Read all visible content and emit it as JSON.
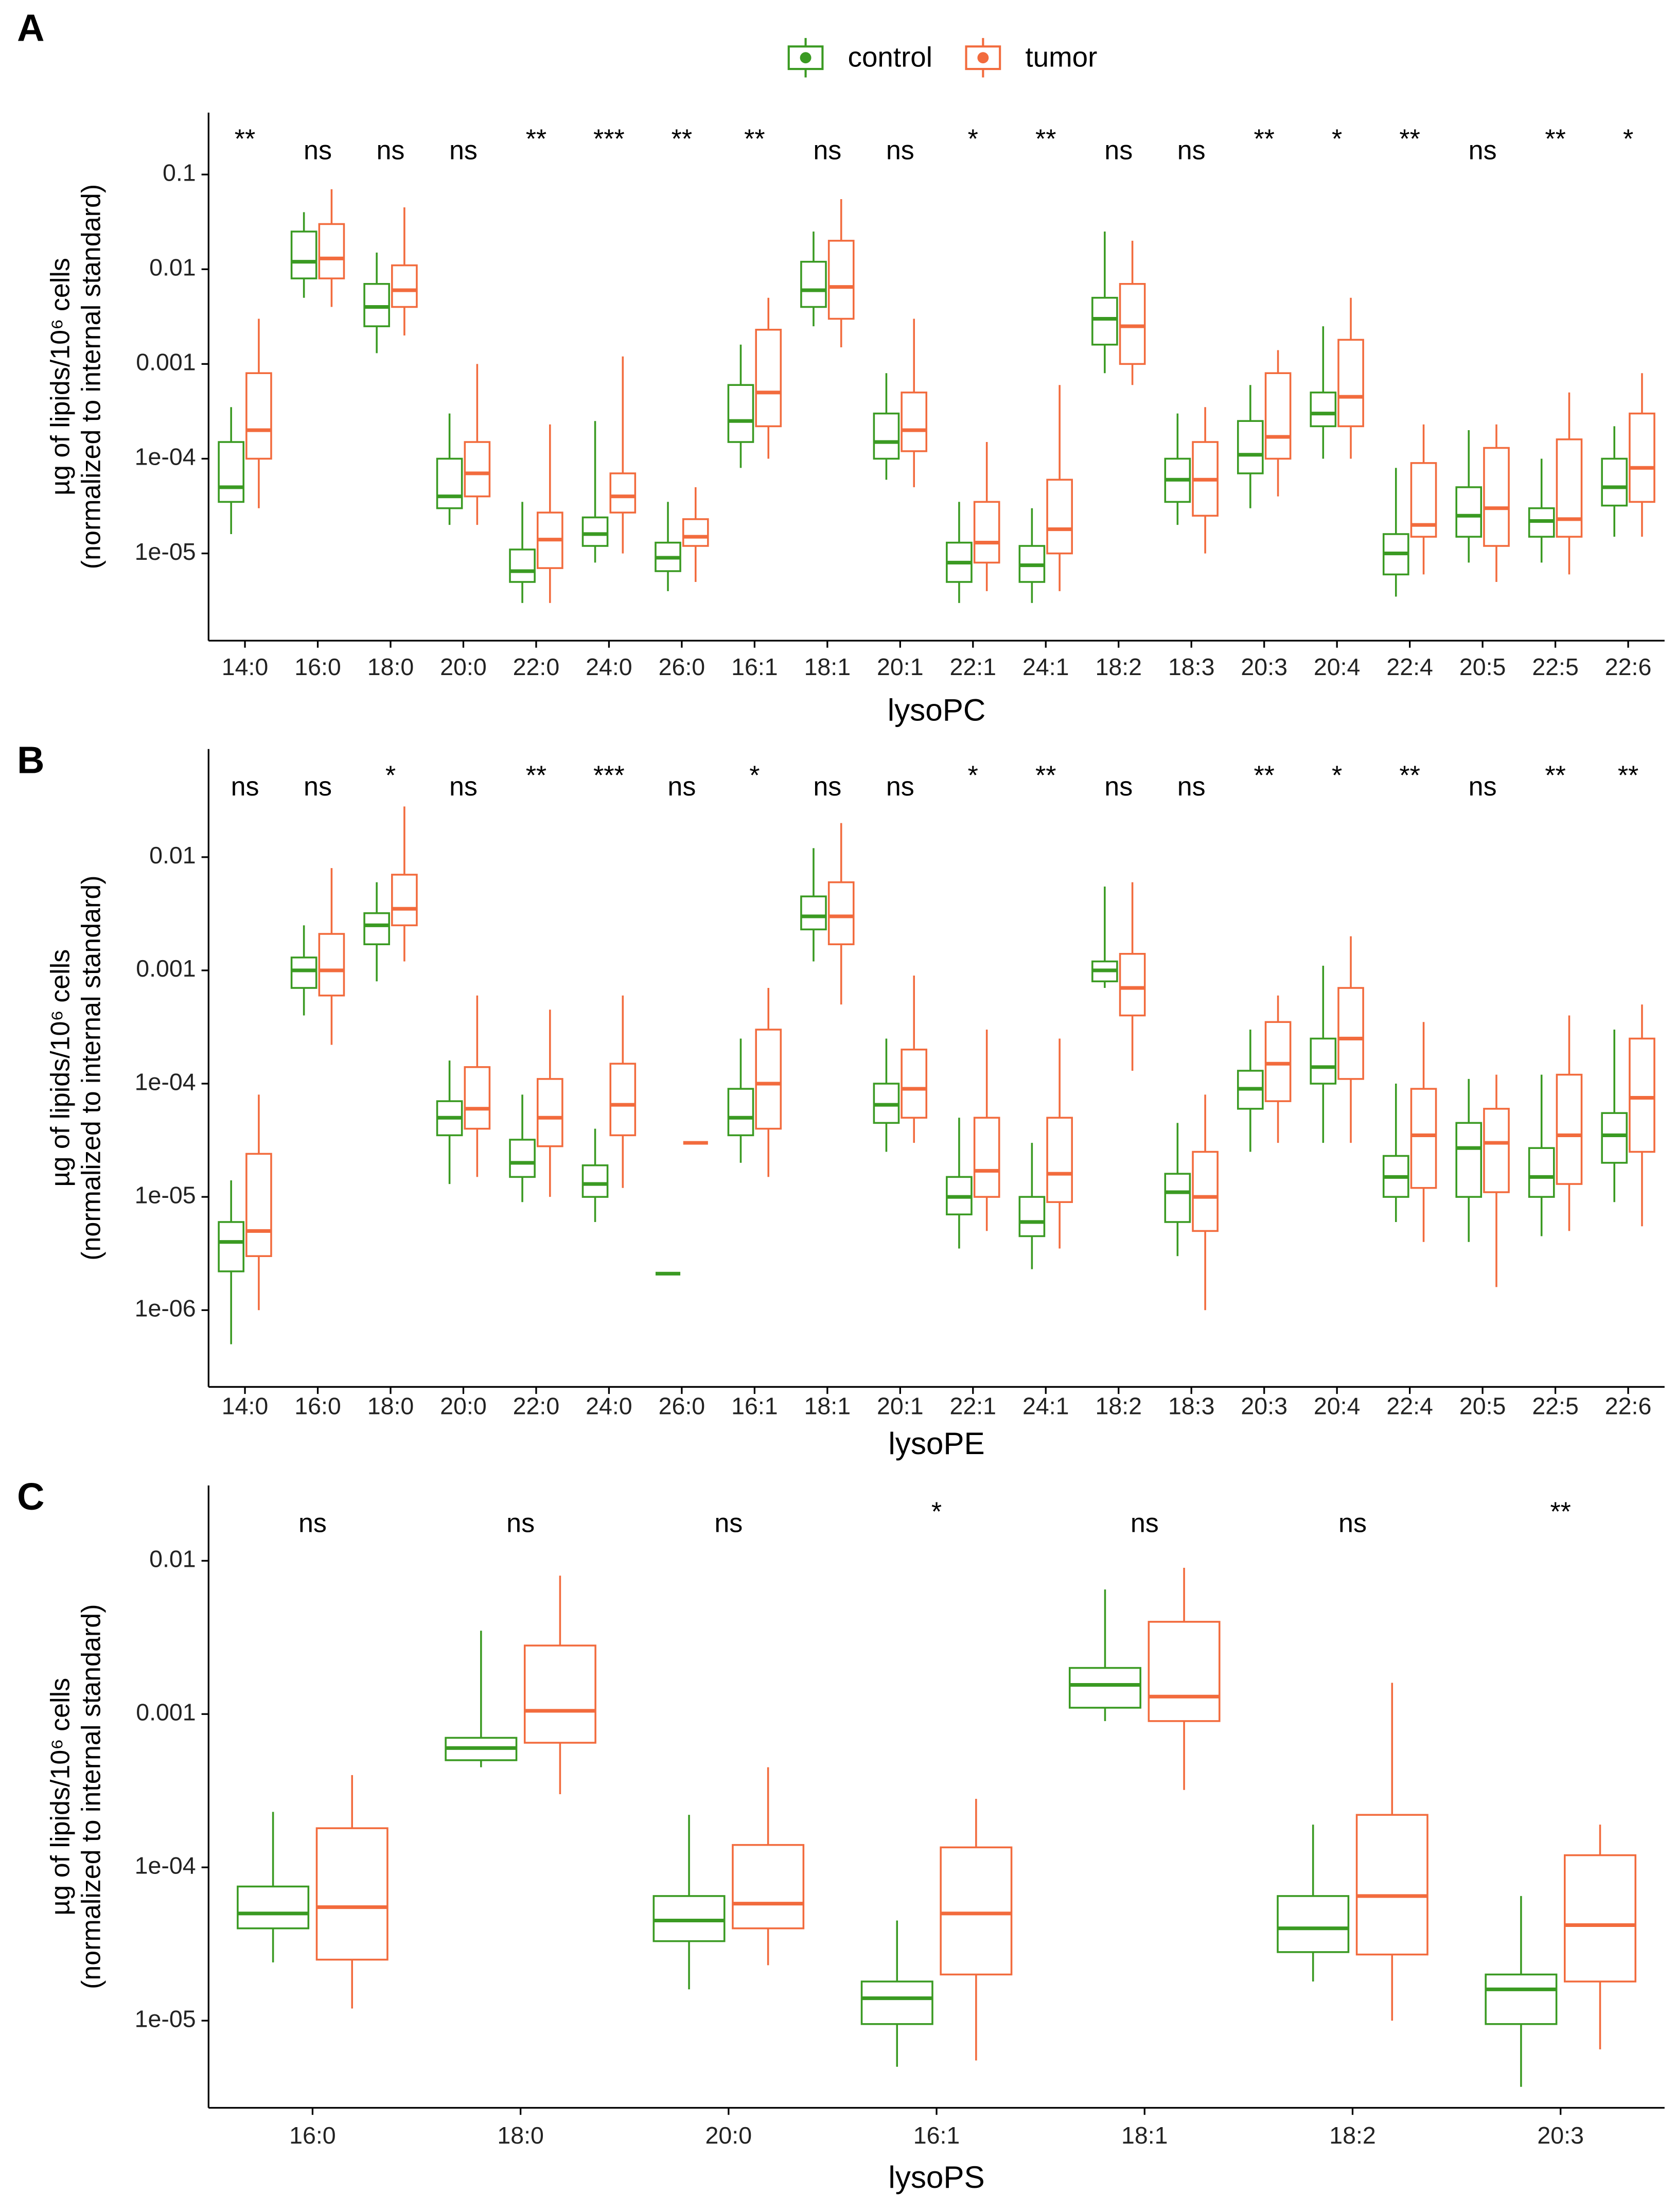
{
  "chart_data": [
    {
      "type": "box",
      "panel": "A",
      "xlabel": "lysoPC",
      "ylabel": [
        "µg of lipids/10⁶ cells",
        "(normalized to internal standard)"
      ],
      "log_scale": true,
      "ylim": [
        1.2e-06,
        0.45
      ],
      "yticks": [
        {
          "value": 1e-05,
          "label": "1e-05"
        },
        {
          "value": 0.0001,
          "label": "1e-04"
        },
        0.001,
        0.01,
        0.1
      ],
      "categories": [
        "14:0",
        "16:0",
        "18:0",
        "20:0",
        "22:0",
        "24:0",
        "26:0",
        "16:1",
        "18:1",
        "20:1",
        "22:1",
        "24:1",
        "18:2",
        "18:3",
        "20:3",
        "20:4",
        "22:4",
        "20:5",
        "22:5",
        "22:6"
      ],
      "annotations": [
        "**",
        "ns",
        "ns",
        "ns",
        "**",
        "***",
        "**",
        "**",
        "ns",
        "ns",
        "*",
        "**",
        "ns",
        "ns",
        "**",
        "*",
        "**",
        "ns",
        "**",
        "*"
      ],
      "series": [
        {
          "name": "control",
          "color": "#3a9a22",
          "values": [
            [
              1.6e-05,
              3.5e-05,
              5e-05,
              0.00015,
              0.00035
            ],
            [
              0.005,
              0.008,
              0.012,
              0.025,
              0.04
            ],
            [
              0.0013,
              0.0025,
              0.004,
              0.007,
              0.015
            ],
            [
              2e-05,
              3e-05,
              4e-05,
              0.0001,
              0.0003
            ],
            [
              3e-06,
              5e-06,
              6.5e-06,
              1.1e-05,
              3.5e-05
            ],
            [
              8e-06,
              1.2e-05,
              1.6e-05,
              2.4e-05,
              0.00025
            ],
            [
              4e-06,
              6.5e-06,
              9e-06,
              1.3e-05,
              3.5e-05
            ],
            [
              8e-05,
              0.00015,
              0.00025,
              0.0006,
              0.0016
            ],
            [
              0.0025,
              0.004,
              0.006,
              0.012,
              0.025
            ],
            [
              6e-05,
              0.0001,
              0.00015,
              0.0003,
              0.0008
            ],
            [
              3e-06,
              5e-06,
              8e-06,
              1.3e-05,
              3.5e-05
            ],
            [
              3e-06,
              5e-06,
              7.5e-06,
              1.2e-05,
              3e-05
            ],
            [
              0.0008,
              0.0016,
              0.003,
              0.005,
              0.025
            ],
            [
              2e-05,
              3.5e-05,
              6e-05,
              0.0001,
              0.0003
            ],
            [
              3e-05,
              7e-05,
              0.00011,
              0.00025,
              0.0006
            ],
            [
              0.0001,
              0.00022,
              0.0003,
              0.0005,
              0.0025
            ],
            [
              3.5e-06,
              6e-06,
              1e-05,
              1.6e-05,
              8e-05
            ],
            [
              8e-06,
              1.5e-05,
              2.5e-05,
              5e-05,
              0.0002
            ],
            [
              8e-06,
              1.5e-05,
              2.2e-05,
              3e-05,
              0.0001
            ],
            [
              1.5e-05,
              3.2e-05,
              5e-05,
              0.0001,
              0.00022
            ]
          ]
        },
        {
          "name": "tumor",
          "color": "#f26b3d",
          "values": [
            [
              3e-05,
              0.0001,
              0.0002,
              0.0008,
              0.003
            ],
            [
              0.004,
              0.008,
              0.013,
              0.03,
              0.07
            ],
            [
              0.002,
              0.004,
              0.006,
              0.011,
              0.045
            ],
            [
              2e-05,
              4e-05,
              7e-05,
              0.00015,
              0.001
            ],
            [
              3e-06,
              7e-06,
              1.4e-05,
              2.7e-05,
              0.00023
            ],
            [
              1e-05,
              2.7e-05,
              4e-05,
              7e-05,
              0.0012
            ],
            [
              5e-06,
              1.2e-05,
              1.5e-05,
              2.3e-05,
              5e-05
            ],
            [
              0.0001,
              0.00022,
              0.0005,
              0.0023,
              0.005
            ],
            [
              0.0015,
              0.003,
              0.0065,
              0.02,
              0.055
            ],
            [
              5e-05,
              0.00012,
              0.0002,
              0.0005,
              0.003
            ],
            [
              4e-06,
              8e-06,
              1.3e-05,
              3.5e-05,
              0.00015
            ],
            [
              4e-06,
              1e-05,
              1.8e-05,
              6e-05,
              0.0006
            ],
            [
              0.0006,
              0.001,
              0.0025,
              0.007,
              0.02
            ],
            [
              1e-05,
              2.5e-05,
              6e-05,
              0.00015,
              0.00035
            ],
            [
              4e-05,
              0.0001,
              0.00017,
              0.0008,
              0.0014
            ],
            [
              0.0001,
              0.00022,
              0.00045,
              0.0018,
              0.005
            ],
            [
              6e-06,
              1.5e-05,
              2e-05,
              9e-05,
              0.00023
            ],
            [
              5e-06,
              1.2e-05,
              3e-05,
              0.00013,
              0.00023
            ],
            [
              6e-06,
              1.5e-05,
              2.3e-05,
              0.00016,
              0.0005
            ],
            [
              1.5e-05,
              3.5e-05,
              8e-05,
              0.0003,
              0.0008
            ]
          ]
        }
      ]
    },
    {
      "type": "box",
      "panel": "B",
      "xlabel": "lysoPE",
      "ylabel": [
        "µg of lipids/10⁶ cells",
        "(normalized to internal standard)"
      ],
      "log_scale": true,
      "ylim": [
        2.1e-07,
        0.09
      ],
      "yticks": [
        {
          "value": 1e-06,
          "label": "1e-06"
        },
        {
          "value": 1e-05,
          "label": "1e-05"
        },
        {
          "value": 0.0001,
          "label": "1e-04"
        },
        0.001,
        0.01
      ],
      "categories": [
        "14:0",
        "16:0",
        "18:0",
        "20:0",
        "22:0",
        "24:0",
        "26:0",
        "16:1",
        "18:1",
        "20:1",
        "22:1",
        "24:1",
        "18:2",
        "18:3",
        "20:3",
        "20:4",
        "22:4",
        "20:5",
        "22:5",
        "22:6"
      ],
      "annotations": [
        "ns",
        "ns",
        "*",
        "ns",
        "**",
        "***",
        "ns",
        "*",
        "ns",
        "ns",
        "*",
        "**",
        "ns",
        "ns",
        "**",
        "*",
        "**",
        "ns",
        "**",
        "**"
      ],
      "series": [
        {
          "name": "control",
          "color": "#3a9a22",
          "values": [
            [
              5e-07,
              2.2e-06,
              4e-06,
              6e-06,
              1.4e-05
            ],
            [
              0.0004,
              0.0007,
              0.001,
              0.0013,
              0.0025
            ],
            [
              0.0008,
              0.0017,
              0.0025,
              0.0032,
              0.006
            ],
            [
              1.3e-05,
              3.5e-05,
              5e-05,
              7e-05,
              0.00016
            ],
            [
              9e-06,
              1.5e-05,
              2e-05,
              3.2e-05,
              8e-05
            ],
            [
              6e-06,
              1e-05,
              1.3e-05,
              1.9e-05,
              4e-05
            ],
            [
              2.1e-06,
              2.1e-06,
              2.1e-06,
              2.1e-06,
              2.1e-06
            ],
            [
              2e-05,
              3.5e-05,
              5e-05,
              9e-05,
              0.00025
            ],
            [
              0.0012,
              0.0023,
              0.003,
              0.0045,
              0.012
            ],
            [
              2.5e-05,
              4.5e-05,
              6.5e-05,
              0.0001,
              0.00025
            ],
            [
              3.5e-06,
              7e-06,
              1e-05,
              1.5e-05,
              5e-05
            ],
            [
              2.3e-06,
              4.5e-06,
              6e-06,
              1e-05,
              3e-05
            ],
            [
              0.0007,
              0.0008,
              0.001,
              0.0012,
              0.0055
            ],
            [
              3e-06,
              6e-06,
              1.1e-05,
              1.6e-05,
              4.5e-05
            ],
            [
              2.5e-05,
              6e-05,
              9e-05,
              0.00013,
              0.0003
            ],
            [
              3e-05,
              0.0001,
              0.00014,
              0.00025,
              0.0011
            ],
            [
              6e-06,
              1e-05,
              1.5e-05,
              2.3e-05,
              0.0001
            ],
            [
              4e-06,
              1e-05,
              2.7e-05,
              4.5e-05,
              0.00011
            ],
            [
              4.5e-06,
              1e-05,
              1.5e-05,
              2.7e-05,
              0.00012
            ],
            [
              9e-06,
              2e-05,
              3.5e-05,
              5.5e-05,
              0.0003
            ]
          ]
        },
        {
          "name": "tumor",
          "color": "#f26b3d",
          "values": [
            [
              1e-06,
              3e-06,
              5e-06,
              2.4e-05,
              8e-05
            ],
            [
              0.00022,
              0.0006,
              0.001,
              0.0021,
              0.008
            ],
            [
              0.0012,
              0.0025,
              0.0035,
              0.007,
              0.028
            ],
            [
              1.5e-05,
              4e-05,
              6e-05,
              0.00014,
              0.0006
            ],
            [
              1e-05,
              2.8e-05,
              5e-05,
              0.00011,
              0.00045
            ],
            [
              1.2e-05,
              3.5e-05,
              6.5e-05,
              0.00015,
              0.0006
            ],
            [
              3e-05,
              3e-05,
              3e-05,
              3e-05,
              3e-05
            ],
            [
              1.5e-05,
              4e-05,
              0.0001,
              0.0003,
              0.0007
            ],
            [
              0.0005,
              0.0017,
              0.003,
              0.006,
              0.02
            ],
            [
              3e-05,
              5e-05,
              9e-05,
              0.0002,
              0.0009
            ],
            [
              5e-06,
              1e-05,
              1.7e-05,
              5e-05,
              0.0003
            ],
            [
              3.5e-06,
              9e-06,
              1.6e-05,
              5e-05,
              0.00025
            ],
            [
              0.00013,
              0.0004,
              0.0007,
              0.0014,
              0.006
            ],
            [
              1e-06,
              5e-06,
              1e-05,
              2.5e-05,
              8e-05
            ],
            [
              3e-05,
              7e-05,
              0.00015,
              0.00035,
              0.0006
            ],
            [
              3e-05,
              0.00011,
              0.00025,
              0.0007,
              0.002
            ],
            [
              4e-06,
              1.2e-05,
              3.5e-05,
              9e-05,
              0.00035
            ],
            [
              1.6e-06,
              1.1e-05,
              3e-05,
              6e-05,
              0.00012
            ],
            [
              5e-06,
              1.3e-05,
              3.5e-05,
              0.00012,
              0.0004
            ],
            [
              5.5e-06,
              2.5e-05,
              7.5e-05,
              0.00025,
              0.0005
            ]
          ]
        }
      ]
    },
    {
      "type": "box",
      "panel": "C",
      "xlabel": "lysoPS",
      "ylabel": [
        "µg of lipids/10⁶ cells",
        "(normalized to internal standard)"
      ],
      "log_scale": true,
      "ylim": [
        2.7e-06,
        0.031
      ],
      "yticks": [
        {
          "value": 1e-05,
          "label": "1e-05"
        },
        {
          "value": 0.0001,
          "label": "1e-04"
        },
        0.001,
        0.01
      ],
      "categories": [
        "16:0",
        "18:0",
        "20:0",
        "16:1",
        "18:1",
        "18:2",
        "20:3"
      ],
      "annotations": [
        "ns",
        "ns",
        "ns",
        "*",
        "ns",
        "ns",
        "**"
      ],
      "series": [
        {
          "name": "control",
          "color": "#3a9a22",
          "values": [
            [
              2.4e-05,
              4e-05,
              5e-05,
              7.5e-05,
              0.00023
            ],
            [
              0.00045,
              0.0005,
              0.0006,
              0.0007,
              0.0035
            ],
            [
              1.6e-05,
              3.3e-05,
              4.5e-05,
              6.5e-05,
              0.00022
            ],
            [
              5e-06,
              9.5e-06,
              1.4e-05,
              1.8e-05,
              4.5e-05
            ],
            [
              0.0009,
              0.0011,
              0.00155,
              0.002,
              0.0065
            ],
            [
              1.8e-05,
              2.8e-05,
              4e-05,
              6.5e-05,
              0.00019
            ],
            [
              3.7e-06,
              9.5e-06,
              1.6e-05,
              2e-05,
              6.5e-05
            ]
          ]
        },
        {
          "name": "tumor",
          "color": "#f26b3d",
          "values": [
            [
              1.2e-05,
              2.5e-05,
              5.5e-05,
              0.00018,
              0.0004
            ],
            [
              0.0003,
              0.00065,
              0.00105,
              0.0028,
              0.008
            ],
            [
              2.3e-05,
              4e-05,
              5.8e-05,
              0.00014,
              0.00045
            ],
            [
              5.5e-06,
              2e-05,
              5e-05,
              0.000135,
              0.00028
            ],
            [
              0.00032,
              0.0009,
              0.0013,
              0.004,
              0.009
            ],
            [
              1e-05,
              2.7e-05,
              6.5e-05,
              0.00022,
              0.0016
            ],
            [
              6.5e-06,
              1.8e-05,
              4.2e-05,
              0.00012,
              0.00019
            ]
          ]
        }
      ]
    }
  ]
}
